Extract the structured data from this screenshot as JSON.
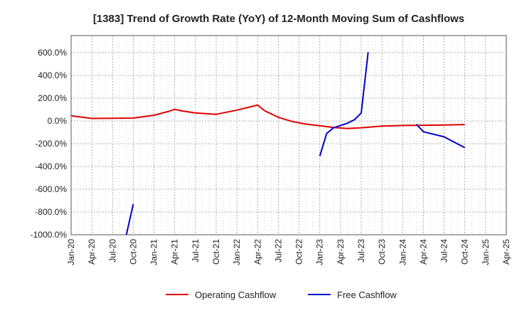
{
  "chart_data": {
    "type": "line",
    "title": "[1383]  Trend of Growth Rate (YoY) of 12-Month Moving Sum of Cashflows",
    "xlabel": "",
    "ylabel": "",
    "ylim": [
      -1000,
      750
    ],
    "y_ticks": [
      600,
      400,
      200,
      0,
      -200,
      -400,
      -600,
      -800,
      -1000
    ],
    "y_tick_labels": [
      "600.0%",
      "400.0%",
      "200.0%",
      "0.0%",
      "-200.0%",
      "-400.0%",
      "-600.0%",
      "-800.0%",
      "-1000.0%"
    ],
    "x_range": [
      "2020-01",
      "2025-04"
    ],
    "x_ticks": [
      "2020-01",
      "2020-04",
      "2020-07",
      "2020-10",
      "2021-01",
      "2021-04",
      "2021-07",
      "2021-10",
      "2022-01",
      "2022-04",
      "2022-07",
      "2022-10",
      "2023-01",
      "2023-04",
      "2023-07",
      "2023-10",
      "2024-01",
      "2024-04",
      "2024-07",
      "2024-10",
      "2025-01",
      "2025-04"
    ],
    "x_tick_labels": [
      "Jan-20",
      "Apr-20",
      "Jul-20",
      "Oct-20",
      "Jan-21",
      "Apr-21",
      "Jul-21",
      "Oct-21",
      "Jan-22",
      "Apr-22",
      "Jul-22",
      "Oct-22",
      "Jan-23",
      "Apr-23",
      "Jul-23",
      "Oct-23",
      "Jan-24",
      "Apr-24",
      "Jul-24",
      "Oct-24",
      "Jan-25",
      "Apr-25"
    ],
    "grid": true,
    "legend_position": "bottom",
    "series": [
      {
        "name": "Operating Cashflow",
        "color": "#e00000",
        "points": [
          [
            "2020-01",
            45
          ],
          [
            "2020-04",
            22
          ],
          [
            "2020-07",
            23
          ],
          [
            "2020-10",
            25
          ],
          [
            "2021-01",
            50
          ],
          [
            "2021-03",
            82
          ],
          [
            "2021-04",
            102
          ],
          [
            "2021-05",
            88
          ],
          [
            "2021-07",
            70
          ],
          [
            "2021-10",
            58
          ],
          [
            "2022-01",
            95
          ],
          [
            "2022-04",
            140
          ],
          [
            "2022-05",
            90
          ],
          [
            "2022-07",
            32
          ],
          [
            "2022-09",
            -5
          ],
          [
            "2022-11",
            -28
          ],
          [
            "2023-01",
            -42
          ],
          [
            "2023-03",
            -58
          ],
          [
            "2023-05",
            -66
          ],
          [
            "2023-07",
            -60
          ],
          [
            "2023-10",
            -45
          ],
          [
            "2024-01",
            -40
          ],
          [
            "2024-04",
            -38
          ],
          [
            "2024-07",
            -36
          ],
          [
            "2024-10",
            -32
          ]
        ]
      },
      {
        "name": "Free Cashflow",
        "color": "#0000cc",
        "segments": [
          [
            [
              "2020-09",
              -1000
            ],
            [
              "2020-10",
              -730
            ]
          ],
          [
            [
              "2023-01",
              -310
            ],
            [
              "2023-02",
              -110
            ],
            [
              "2023-03",
              -60
            ],
            [
              "2023-04",
              -40
            ],
            [
              "2023-05",
              -20
            ],
            [
              "2023-06",
              10
            ],
            [
              "2023-07",
              70
            ],
            [
              "2023-08",
              605
            ]
          ],
          [
            [
              "2024-03",
              -30
            ],
            [
              "2024-04",
              -95
            ],
            [
              "2024-07",
              -140
            ],
            [
              "2024-10",
              -235
            ]
          ]
        ]
      }
    ]
  }
}
